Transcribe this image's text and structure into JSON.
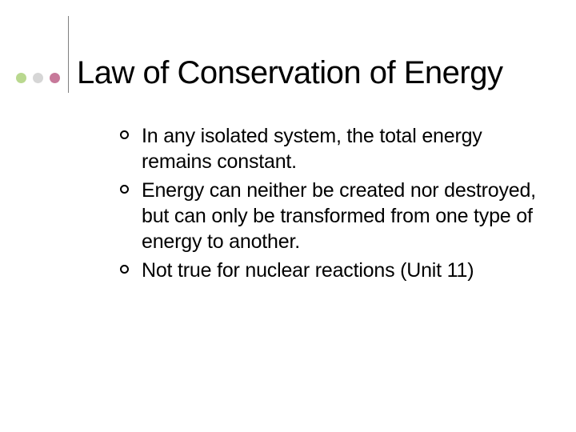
{
  "slide": {
    "title": "Law of Conservation of Energy",
    "accent_dots": [
      {
        "color": "#b9d88f"
      },
      {
        "color": "#d6d6d6"
      },
      {
        "color": "#c7799a"
      }
    ],
    "divider_color": "#808080",
    "title_fontsize": 40,
    "title_color": "#000000",
    "body_fontsize": 25,
    "body_color": "#000000",
    "bullet_style": "hollow-circle",
    "bullets": [
      {
        "text": "In any isolated system, the total energy remains constant."
      },
      {
        "text": "Energy can neither be created nor destroyed, but can only be transformed from one type of energy to another."
      },
      {
        "text": "Not true for nuclear reactions (Unit 11)"
      }
    ],
    "background_color": "#ffffff"
  }
}
